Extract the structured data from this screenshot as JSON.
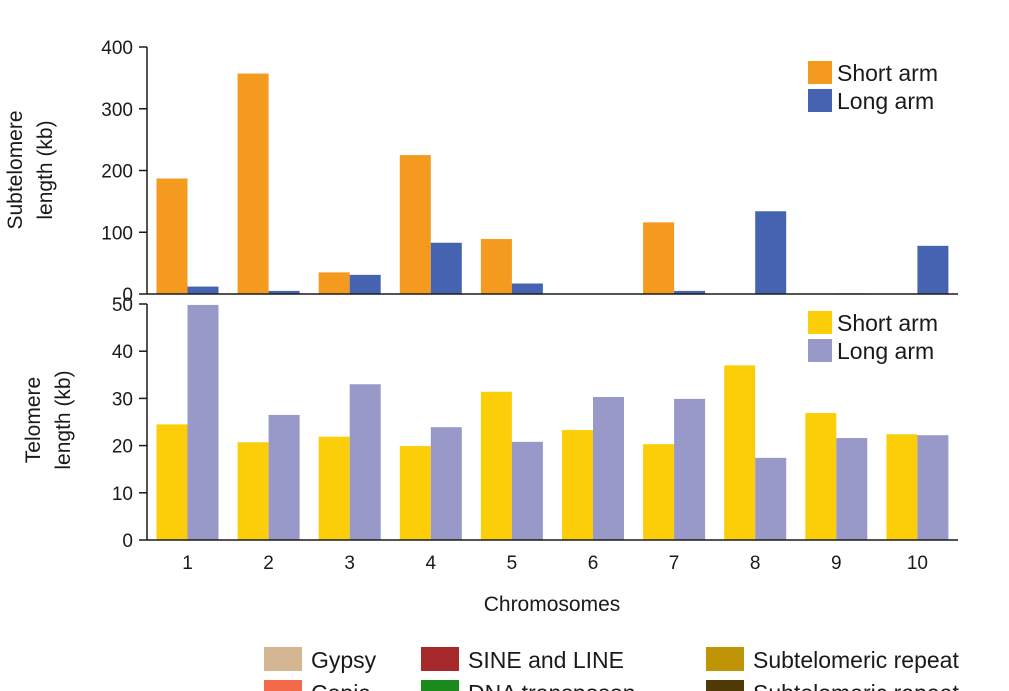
{
  "chart_data": [
    {
      "type": "bar",
      "panel": "top",
      "ylabel_line1": "Subtelomere",
      "ylabel_line2": "length (kb)",
      "ylim": [
        0,
        400
      ],
      "yticks": [
        "0",
        "100",
        "200",
        "300",
        "400"
      ],
      "categories": [
        "1",
        "2",
        "3",
        "4",
        "5",
        "6",
        "7",
        "8",
        "9",
        "10"
      ],
      "series": [
        {
          "name": "Short arm",
          "color": "#f39a1f",
          "values": [
            187,
            357,
            35,
            225,
            89,
            0,
            116,
            0,
            0,
            0
          ]
        },
        {
          "name": "Long arm",
          "color": "#4563b0",
          "values": [
            12,
            5,
            31,
            83,
            17,
            0,
            5,
            134,
            1,
            78
          ]
        }
      ],
      "legend_position": "top-right"
    },
    {
      "type": "bar",
      "panel": "bottom",
      "ylabel_line1": "Telomere",
      "ylabel_line2": "length (kb)",
      "ylim": [
        0,
        50
      ],
      "yticks": [
        "0",
        "10",
        "20",
        "30",
        "40",
        "50"
      ],
      "categories": [
        "1",
        "2",
        "3",
        "4",
        "5",
        "6",
        "7",
        "8",
        "9",
        "10"
      ],
      "xlabel": "Chromosomes",
      "series": [
        {
          "name": "Short arm",
          "color": "#fcce0a",
          "values": [
            24.5,
            20.7,
            21.9,
            19.9,
            31.4,
            23.3,
            20.3,
            37.0,
            26.9,
            22.4
          ]
        },
        {
          "name": "Long arm",
          "color": "#9898c9",
          "values": [
            49.8,
            26.5,
            33.0,
            23.9,
            20.8,
            30.3,
            29.9,
            17.4,
            21.6,
            22.2
          ]
        }
      ],
      "legend_position": "top-right"
    }
  ],
  "bottom_legend": [
    {
      "label": "Gypsy",
      "color": "#d4b792"
    },
    {
      "label": "SINE and LINE",
      "color": "#a8292c"
    },
    {
      "label": "Subtelomeric repeat",
      "color": "#bf9507"
    },
    {
      "label": "Copia",
      "color": "#f26a4a"
    },
    {
      "label": "DNA transposon",
      "color": "#1a8a1a"
    },
    {
      "label": "Subtelomeric repeat",
      "color": "#4f3a05"
    }
  ]
}
